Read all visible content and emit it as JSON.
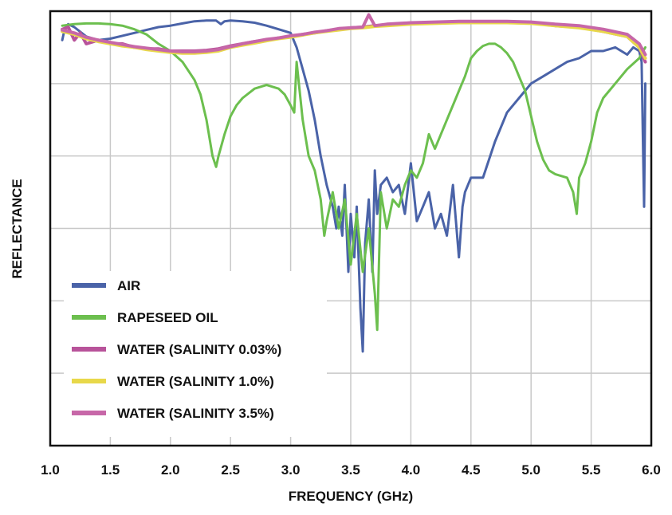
{
  "chart_data": {
    "type": "line",
    "xlabel": "FREQUENCY (GHz)",
    "ylabel": "REFLECTANCE",
    "xlim": [
      1.0,
      6.0
    ],
    "ylim": [
      0,
      6
    ],
    "x_ticks": [
      "1.0",
      "1.5",
      "2.0",
      "2.5",
      "3.0",
      "3.5",
      "4.0",
      "4.5",
      "5.0",
      "5.5",
      "6.0"
    ],
    "grid": true,
    "legend_position": "bottom-left",
    "series": [
      {
        "name": "AIR",
        "color": "#4a63a8",
        "x": [
          1.1,
          1.12,
          1.15,
          1.2,
          1.3,
          1.4,
          1.5,
          1.6,
          1.7,
          1.8,
          1.9,
          2.0,
          2.1,
          2.2,
          2.3,
          2.38,
          2.42,
          2.45,
          2.5,
          2.6,
          2.7,
          2.8,
          2.9,
          3.0,
          3.05,
          3.1,
          3.15,
          3.2,
          3.25,
          3.3,
          3.35,
          3.38,
          3.4,
          3.43,
          3.45,
          3.48,
          3.5,
          3.53,
          3.55,
          3.58,
          3.6,
          3.62,
          3.65,
          3.68,
          3.7,
          3.72,
          3.75,
          3.8,
          3.85,
          3.9,
          3.95,
          4.0,
          4.05,
          4.1,
          4.15,
          4.2,
          4.25,
          4.3,
          4.35,
          4.4,
          4.43,
          4.45,
          4.5,
          4.6,
          4.7,
          4.8,
          4.9,
          5.0,
          5.1,
          5.2,
          5.3,
          5.4,
          5.5,
          5.6,
          5.7,
          5.8,
          5.85,
          5.9,
          5.92,
          5.93,
          5.94,
          5.95
        ],
        "y": [
          5.6,
          5.75,
          5.82,
          5.78,
          5.65,
          5.6,
          5.62,
          5.66,
          5.7,
          5.74,
          5.78,
          5.8,
          5.83,
          5.86,
          5.87,
          5.87,
          5.82,
          5.86,
          5.87,
          5.86,
          5.84,
          5.8,
          5.75,
          5.7,
          5.5,
          5.2,
          4.9,
          4.5,
          4.0,
          3.6,
          3.3,
          3.0,
          3.3,
          2.9,
          3.6,
          2.4,
          3.2,
          2.6,
          3.3,
          1.9,
          1.3,
          2.8,
          3.4,
          2.4,
          3.8,
          3.2,
          3.6,
          3.7,
          3.5,
          3.6,
          3.2,
          3.9,
          3.1,
          3.3,
          3.5,
          3.0,
          3.2,
          2.9,
          3.6,
          2.6,
          3.3,
          3.5,
          3.7,
          3.7,
          4.2,
          4.6,
          4.8,
          5.0,
          5.1,
          5.2,
          5.3,
          5.35,
          5.45,
          5.45,
          5.5,
          5.4,
          5.5,
          5.45,
          5.3,
          4.3,
          3.3,
          5.0
        ]
      },
      {
        "name": "RAPESEED OIL",
        "color": "#6cbf4e",
        "x": [
          1.1,
          1.2,
          1.3,
          1.4,
          1.5,
          1.6,
          1.7,
          1.8,
          1.9,
          2.0,
          2.1,
          2.2,
          2.25,
          2.3,
          2.35,
          2.38,
          2.4,
          2.45,
          2.5,
          2.55,
          2.6,
          2.7,
          2.8,
          2.9,
          2.95,
          3.0,
          3.03,
          3.05,
          3.1,
          3.15,
          3.2,
          3.25,
          3.28,
          3.3,
          3.35,
          3.4,
          3.45,
          3.5,
          3.55,
          3.6,
          3.65,
          3.7,
          3.72,
          3.75,
          3.8,
          3.85,
          3.9,
          3.95,
          4.0,
          4.05,
          4.1,
          4.15,
          4.2,
          4.25,
          4.3,
          4.35,
          4.4,
          4.45,
          4.5,
          4.55,
          4.6,
          4.65,
          4.7,
          4.75,
          4.8,
          4.85,
          4.9,
          4.95,
          5.0,
          5.05,
          5.1,
          5.15,
          5.2,
          5.3,
          5.35,
          5.38,
          5.4,
          5.45,
          5.5,
          5.55,
          5.6,
          5.7,
          5.8,
          5.9,
          5.95
        ],
        "y": [
          5.8,
          5.82,
          5.83,
          5.83,
          5.82,
          5.8,
          5.75,
          5.68,
          5.55,
          5.45,
          5.3,
          5.05,
          4.85,
          4.5,
          4.0,
          3.85,
          4.0,
          4.3,
          4.55,
          4.7,
          4.8,
          4.93,
          4.98,
          4.93,
          4.85,
          4.7,
          4.6,
          5.3,
          4.5,
          4.0,
          3.8,
          3.4,
          2.9,
          3.1,
          3.5,
          3.0,
          3.4,
          2.5,
          3.2,
          2.4,
          3.0,
          2.1,
          1.6,
          3.5,
          3.0,
          3.4,
          3.3,
          3.6,
          3.8,
          3.7,
          3.9,
          4.3,
          4.1,
          4.3,
          4.5,
          4.7,
          4.9,
          5.1,
          5.35,
          5.45,
          5.52,
          5.55,
          5.55,
          5.5,
          5.42,
          5.3,
          5.1,
          4.9,
          4.55,
          4.2,
          3.95,
          3.8,
          3.75,
          3.7,
          3.5,
          3.2,
          3.7,
          3.9,
          4.2,
          4.6,
          4.8,
          5.0,
          5.2,
          5.35,
          5.5
        ]
      },
      {
        "name": "WATER (SALINITY 0.03%)",
        "color": "#b8539a",
        "x": [
          1.1,
          1.15,
          1.2,
          1.25,
          1.3,
          1.4,
          1.5,
          1.6,
          1.7,
          1.8,
          1.9,
          2.0,
          2.1,
          2.2,
          2.3,
          2.4,
          2.5,
          2.6,
          2.7,
          2.8,
          2.9,
          3.0,
          3.1,
          3.2,
          3.3,
          3.4,
          3.5,
          3.6,
          3.7,
          3.8,
          3.9,
          4.0,
          4.2,
          4.4,
          4.6,
          4.8,
          5.0,
          5.2,
          5.4,
          5.6,
          5.8,
          5.9,
          5.95
        ],
        "y": [
          5.75,
          5.78,
          5.6,
          5.7,
          5.55,
          5.6,
          5.55,
          5.55,
          5.5,
          5.48,
          5.48,
          5.45,
          5.45,
          5.45,
          5.46,
          5.48,
          5.52,
          5.55,
          5.58,
          5.6,
          5.63,
          5.65,
          5.68,
          5.7,
          5.73,
          5.75,
          5.77,
          5.78,
          5.8,
          5.81,
          5.82,
          5.83,
          5.84,
          5.85,
          5.85,
          5.85,
          5.84,
          5.8,
          5.78,
          5.72,
          5.65,
          5.5,
          5.3
        ]
      },
      {
        "name": "WATER (SALINITY 1.0%)",
        "color": "#e8d84a",
        "x": [
          1.1,
          1.2,
          1.3,
          1.4,
          1.5,
          1.6,
          1.7,
          1.8,
          1.9,
          2.0,
          2.1,
          2.2,
          2.3,
          2.4,
          2.5,
          2.6,
          2.7,
          2.8,
          2.9,
          3.0,
          3.1,
          3.2,
          3.3,
          3.4,
          3.5,
          3.6,
          3.7,
          3.8,
          3.9,
          4.0,
          4.2,
          4.4,
          4.6,
          4.8,
          5.0,
          5.2,
          5.4,
          5.6,
          5.8,
          5.9,
          5.95
        ],
        "y": [
          5.72,
          5.68,
          5.62,
          5.58,
          5.55,
          5.52,
          5.5,
          5.47,
          5.45,
          5.43,
          5.42,
          5.42,
          5.43,
          5.45,
          5.5,
          5.53,
          5.56,
          5.59,
          5.62,
          5.64,
          5.67,
          5.7,
          5.72,
          5.74,
          5.76,
          5.77,
          5.79,
          5.8,
          5.81,
          5.82,
          5.83,
          5.84,
          5.84,
          5.84,
          5.83,
          5.8,
          5.77,
          5.72,
          5.65,
          5.5,
          5.35
        ]
      },
      {
        "name": "WATER (SALINITY 3.5%)",
        "color": "#c767a8",
        "x": [
          1.1,
          1.2,
          1.3,
          1.4,
          1.5,
          1.6,
          1.7,
          1.8,
          1.9,
          2.0,
          2.1,
          2.2,
          2.3,
          2.4,
          2.5,
          2.6,
          2.7,
          2.8,
          2.9,
          3.0,
          3.1,
          3.2,
          3.3,
          3.4,
          3.5,
          3.6,
          3.65,
          3.7,
          3.8,
          3.9,
          4.0,
          4.2,
          4.4,
          4.6,
          4.8,
          5.0,
          5.2,
          5.4,
          5.6,
          5.8,
          5.9,
          5.95
        ],
        "y": [
          5.74,
          5.7,
          5.64,
          5.6,
          5.57,
          5.54,
          5.51,
          5.49,
          5.47,
          5.45,
          5.44,
          5.44,
          5.45,
          5.47,
          5.51,
          5.55,
          5.58,
          5.61,
          5.63,
          5.66,
          5.68,
          5.71,
          5.73,
          5.76,
          5.77,
          5.78,
          5.95,
          5.8,
          5.82,
          5.83,
          5.84,
          5.85,
          5.86,
          5.86,
          5.86,
          5.85,
          5.82,
          5.8,
          5.75,
          5.68,
          5.55,
          5.4
        ]
      }
    ]
  }
}
